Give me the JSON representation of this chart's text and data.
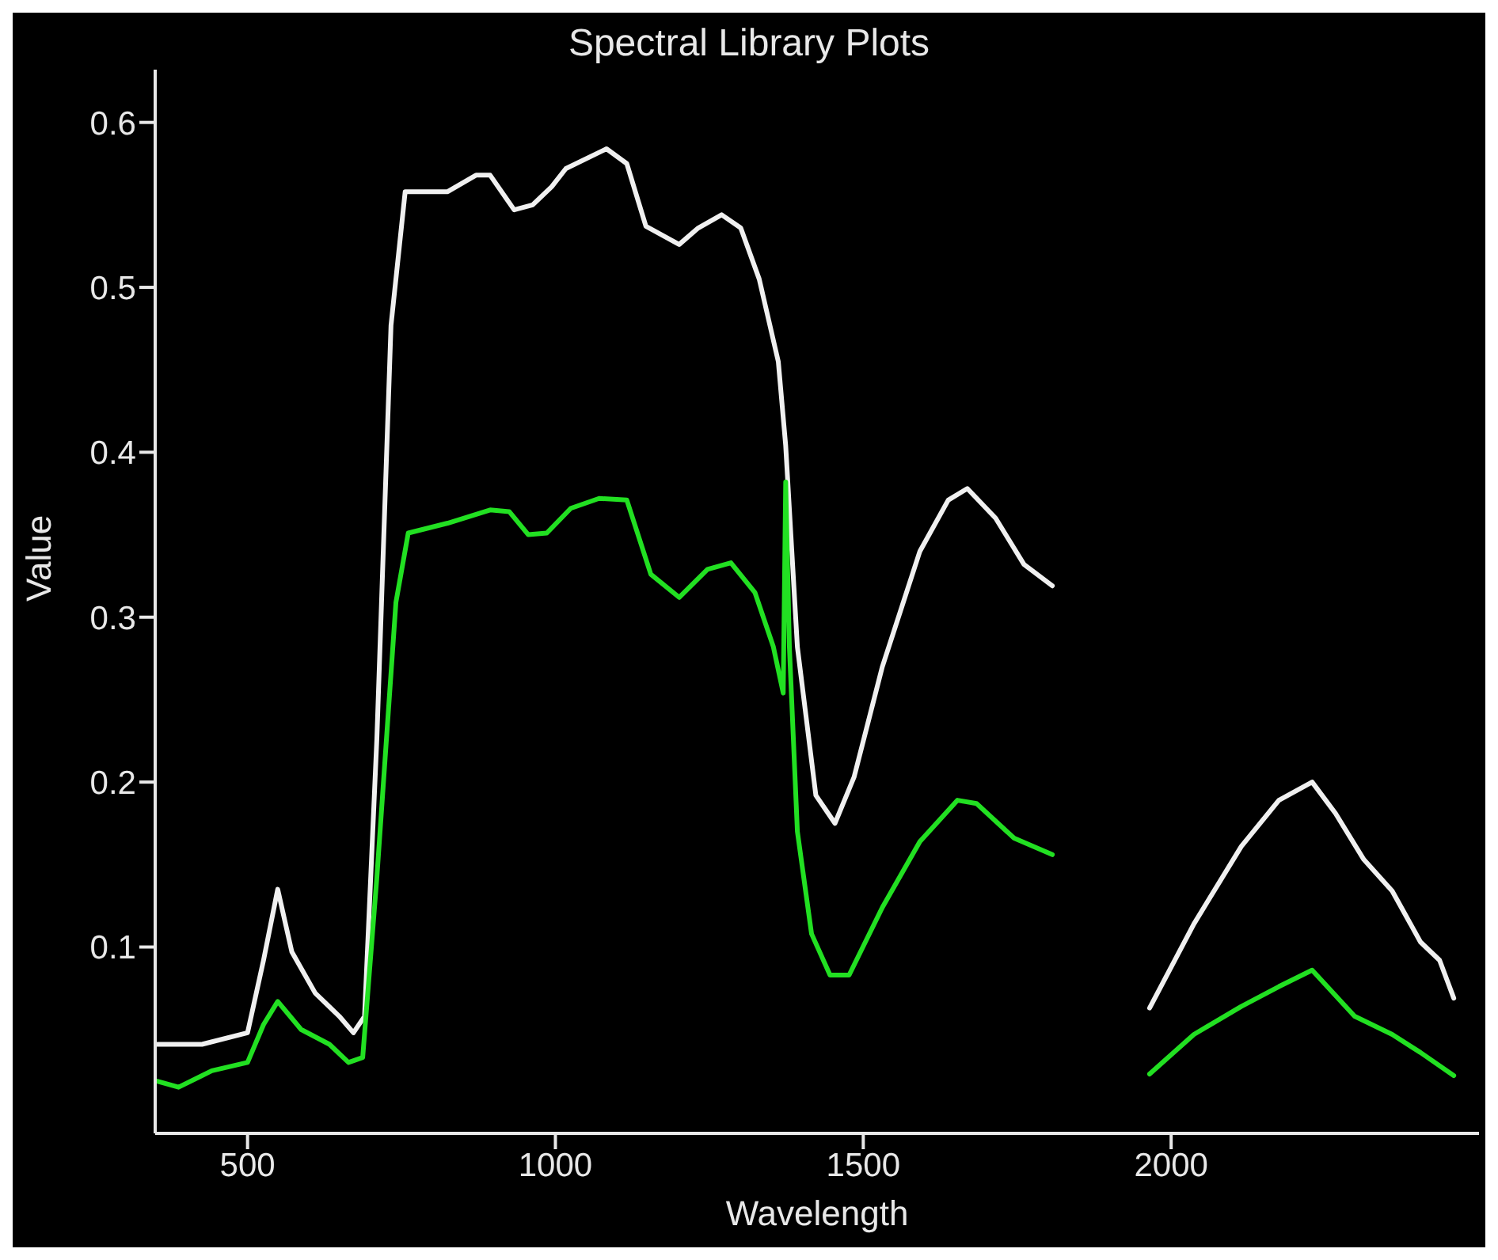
{
  "chart_data": {
    "type": "line",
    "title": "Spectral Library Plots",
    "xlabel": "Wavelength",
    "ylabel": "Value",
    "x": [
      350,
      388,
      426,
      442,
      500,
      526,
      549,
      572,
      587,
      610,
      633,
      649,
      664,
      672,
      687,
      690,
      710,
      733,
      741,
      756,
      761,
      825,
      871,
      894,
      925,
      933,
      956,
      963,
      986,
      994,
      1017,
      1025,
      1071,
      1083,
      1116,
      1147,
      1155,
      1201,
      1232,
      1247,
      1270,
      1285,
      1301,
      1324,
      1331,
      1354,
      1362,
      1370,
      1374,
      1380,
      1393,
      1416,
      1423,
      1446,
      1454,
      1477,
      1485,
      1531,
      1592,
      1638,
      1653,
      1669,
      1684,
      1715,
      1745,
      1761,
      1807,
      1880,
      1965,
      2037,
      2114,
      2175,
      2229,
      2267,
      2298,
      2313,
      2359,
      2405,
      2436,
      2459
    ],
    "series": [
      {
        "color": "#f0f0f0",
        "values": [
          0.041,
          null,
          0.041,
          null,
          0.048,
          0.092,
          0.135,
          0.097,
          null,
          0.072,
          null,
          0.058,
          null,
          0.048,
          null,
          0.058,
          0.226,
          0.477,
          null,
          0.558,
          null,
          0.558,
          0.568,
          0.568,
          null,
          0.547,
          null,
          0.55,
          null,
          0.561,
          0.572,
          null,
          null,
          0.584,
          0.575,
          0.537,
          null,
          0.526,
          0.536,
          null,
          0.544,
          null,
          0.536,
          null,
          0.505,
          null,
          0.455,
          null,
          0.404,
          null,
          0.282,
          null,
          0.192,
          null,
          0.175,
          null,
          0.203,
          0.27,
          0.34,
          0.371,
          null,
          0.378,
          null,
          0.36,
          null,
          0.332,
          0.319,
          null,
          0.063,
          0.114,
          0.161,
          0.189,
          0.2,
          0.181,
          null,
          0.153,
          0.134,
          0.103,
          0.092,
          0.069
        ]
      },
      {
        "color": "#22e022",
        "values": [
          0.019,
          0.015,
          null,
          0.025,
          0.03,
          0.053,
          0.067,
          null,
          0.05,
          null,
          0.041,
          null,
          0.03,
          null,
          0.033,
          null,
          0.142,
          null,
          0.309,
          null,
          0.351,
          0.357,
          null,
          0.365,
          0.364,
          null,
          0.35,
          null,
          0.351,
          null,
          null,
          0.366,
          0.372,
          null,
          0.371,
          null,
          0.326,
          0.312,
          null,
          0.329,
          null,
          0.333,
          null,
          0.315,
          null,
          0.282,
          null,
          0.254,
          0.382,
          0.282,
          0.17,
          0.108,
          null,
          0.083,
          null,
          0.083,
          null,
          0.124,
          0.164,
          null,
          0.189,
          null,
          0.187,
          null,
          0.166,
          null,
          0.156,
          null,
          0.023,
          0.047,
          0.064,
          0.076,
          0.086,
          null,
          0.058,
          null,
          0.047,
          0.036,
          null,
          0.022
        ]
      }
    ],
    "xlim": [
      350,
      2500
    ],
    "xticks": [
      500,
      1000,
      1500,
      2000
    ],
    "ylim": [
      -0.013,
      0.632
    ],
    "yticks": [
      {
        "value": 0.1,
        "label": "0.1"
      },
      {
        "value": 0.2,
        "label": "0.2"
      },
      {
        "value": 0.3,
        "label": "0.3"
      },
      {
        "value": 0.4,
        "label": "0.4"
      },
      {
        "value": 0.5,
        "label": "0.5"
      },
      {
        "value": 0.6,
        "label": "0.6"
      }
    ],
    "grid": false,
    "legend": false,
    "marker": "none",
    "line_style": "solid"
  }
}
